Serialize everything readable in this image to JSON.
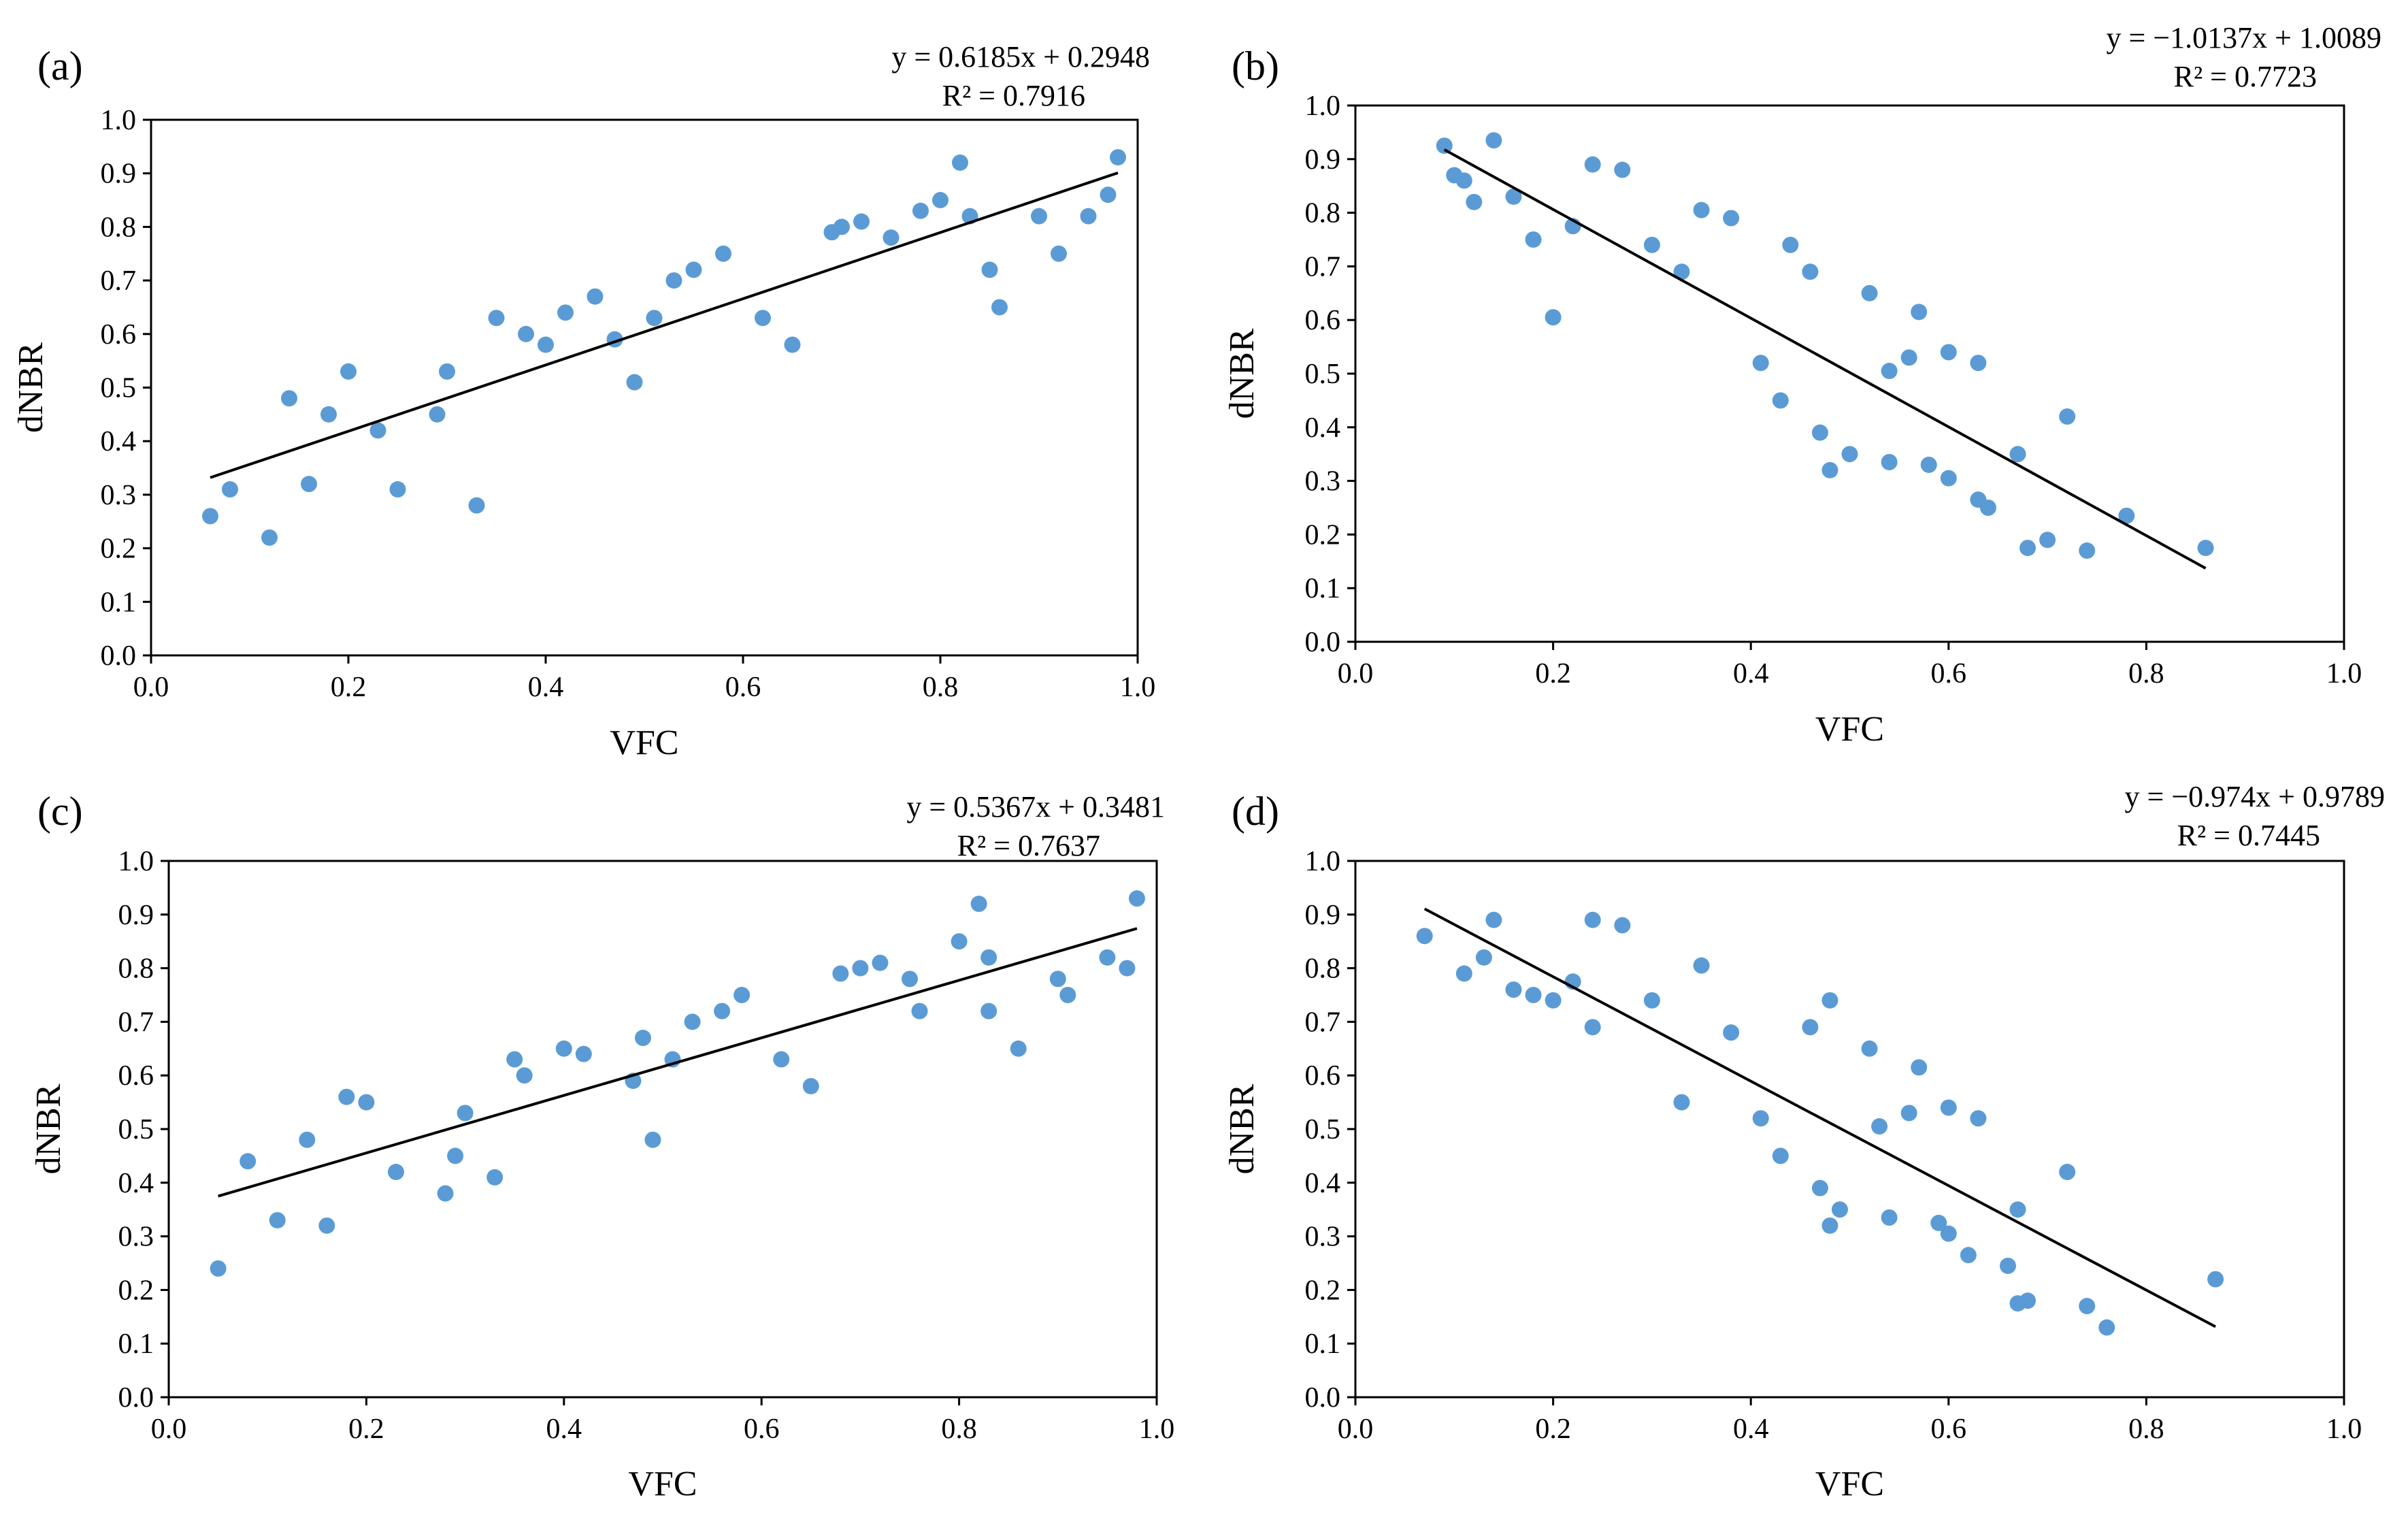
{
  "style": {
    "point_color": "#5b9bd5",
    "line_color": "#000000",
    "axis_color": "#000000",
    "background": "#ffffff"
  },
  "chart_data": [
    {
      "type": "scatter",
      "panel_label": "(a)",
      "equation": "y = 0.6185x + 0.2948",
      "r2": "R² = 0.7916",
      "xlabel": "VFC",
      "ylabel": "dNBR",
      "xlim": [
        0,
        1
      ],
      "ylim": [
        0,
        1
      ],
      "x_ticks": [
        "0.0",
        "0.2",
        "0.4",
        "0.6",
        "0.8",
        "1.0"
      ],
      "y_ticks": [
        "0.0",
        "0.1",
        "0.2",
        "0.3",
        "0.4",
        "0.5",
        "0.6",
        "0.7",
        "0.8",
        "0.9",
        "1.0"
      ],
      "grid": false,
      "trendline": {
        "slope": 0.6185,
        "intercept": 0.2948,
        "x_range": [
          0.06,
          0.98
        ]
      },
      "points": [
        [
          0.06,
          0.26
        ],
        [
          0.08,
          0.31
        ],
        [
          0.12,
          0.22
        ],
        [
          0.14,
          0.48
        ],
        [
          0.16,
          0.32
        ],
        [
          0.18,
          0.45
        ],
        [
          0.2,
          0.53
        ],
        [
          0.23,
          0.42
        ],
        [
          0.25,
          0.31
        ],
        [
          0.29,
          0.45
        ],
        [
          0.3,
          0.53
        ],
        [
          0.33,
          0.28
        ],
        [
          0.35,
          0.63
        ],
        [
          0.38,
          0.6
        ],
        [
          0.4,
          0.58
        ],
        [
          0.42,
          0.64
        ],
        [
          0.45,
          0.67
        ],
        [
          0.47,
          0.59
        ],
        [
          0.49,
          0.51
        ],
        [
          0.51,
          0.63
        ],
        [
          0.53,
          0.7
        ],
        [
          0.55,
          0.72
        ],
        [
          0.58,
          0.75
        ],
        [
          0.62,
          0.63
        ],
        [
          0.65,
          0.58
        ],
        [
          0.69,
          0.79
        ],
        [
          0.7,
          0.8
        ],
        [
          0.72,
          0.81
        ],
        [
          0.75,
          0.78
        ],
        [
          0.78,
          0.83
        ],
        [
          0.8,
          0.85
        ],
        [
          0.82,
          0.92
        ],
        [
          0.83,
          0.82
        ],
        [
          0.85,
          0.72
        ],
        [
          0.86,
          0.65
        ],
        [
          0.9,
          0.82
        ],
        [
          0.92,
          0.75
        ],
        [
          0.95,
          0.82
        ],
        [
          0.97,
          0.86
        ],
        [
          0.98,
          0.93
        ]
      ]
    },
    {
      "type": "scatter",
      "panel_label": "(b)",
      "equation": "y = −1.0137x + 1.0089",
      "r2": "R² = 0.7723",
      "xlabel": "VFC",
      "ylabel": "dNBR",
      "xlim": [
        0,
        1
      ],
      "ylim": [
        0,
        1
      ],
      "x_ticks": [
        "0.0",
        "0.2",
        "0.4",
        "0.6",
        "0.8",
        "1.0"
      ],
      "y_ticks": [
        "0.0",
        "0.1",
        "0.2",
        "0.3",
        "0.4",
        "0.5",
        "0.6",
        "0.7",
        "0.8",
        "0.9",
        "1.0"
      ],
      "grid": false,
      "trendline": {
        "slope": -1.0137,
        "intercept": 1.0089,
        "x_range": [
          0.09,
          0.86
        ]
      },
      "points": [
        [
          0.09,
          0.925
        ],
        [
          0.1,
          0.87
        ],
        [
          0.11,
          0.86
        ],
        [
          0.12,
          0.82
        ],
        [
          0.14,
          0.935
        ],
        [
          0.16,
          0.83
        ],
        [
          0.18,
          0.75
        ],
        [
          0.2,
          0.605
        ],
        [
          0.22,
          0.775
        ],
        [
          0.24,
          0.89
        ],
        [
          0.27,
          0.88
        ],
        [
          0.3,
          0.74
        ],
        [
          0.33,
          0.69
        ],
        [
          0.35,
          0.805
        ],
        [
          0.38,
          0.79
        ],
        [
          0.41,
          0.52
        ],
        [
          0.43,
          0.45
        ],
        [
          0.44,
          0.74
        ],
        [
          0.46,
          0.69
        ],
        [
          0.47,
          0.39
        ],
        [
          0.48,
          0.32
        ],
        [
          0.5,
          0.35
        ],
        [
          0.52,
          0.65
        ],
        [
          0.54,
          0.505
        ],
        [
          0.54,
          0.335
        ],
        [
          0.56,
          0.53
        ],
        [
          0.57,
          0.615
        ],
        [
          0.58,
          0.33
        ],
        [
          0.6,
          0.54
        ],
        [
          0.6,
          0.305
        ],
        [
          0.63,
          0.52
        ],
        [
          0.63,
          0.265
        ],
        [
          0.64,
          0.25
        ],
        [
          0.67,
          0.35
        ],
        [
          0.68,
          0.175
        ],
        [
          0.7,
          0.19
        ],
        [
          0.72,
          0.42
        ],
        [
          0.74,
          0.17
        ],
        [
          0.78,
          0.235
        ],
        [
          0.86,
          0.175
        ]
      ]
    },
    {
      "type": "scatter",
      "panel_label": "(c)",
      "equation": "y = 0.5367x + 0.3481",
      "r2": "R² = 0.7637",
      "xlabel": "VFC",
      "ylabel": "dNBR",
      "xlim": [
        0,
        1
      ],
      "ylim": [
        0,
        1
      ],
      "x_ticks": [
        "0.0",
        "0.2",
        "0.4",
        "0.6",
        "0.8",
        "1.0"
      ],
      "y_ticks": [
        "0.0",
        "0.1",
        "0.2",
        "0.3",
        "0.4",
        "0.5",
        "0.6",
        "0.7",
        "0.8",
        "0.9",
        "1.0"
      ],
      "grid": false,
      "trendline": {
        "slope": 0.5367,
        "intercept": 0.3481,
        "x_range": [
          0.05,
          0.98
        ]
      },
      "points": [
        [
          0.05,
          0.24
        ],
        [
          0.08,
          0.44
        ],
        [
          0.11,
          0.33
        ],
        [
          0.14,
          0.48
        ],
        [
          0.16,
          0.32
        ],
        [
          0.18,
          0.56
        ],
        [
          0.2,
          0.55
        ],
        [
          0.23,
          0.42
        ],
        [
          0.28,
          0.38
        ],
        [
          0.29,
          0.45
        ],
        [
          0.3,
          0.53
        ],
        [
          0.33,
          0.41
        ],
        [
          0.35,
          0.63
        ],
        [
          0.36,
          0.6
        ],
        [
          0.4,
          0.65
        ],
        [
          0.42,
          0.64
        ],
        [
          0.47,
          0.59
        ],
        [
          0.48,
          0.67
        ],
        [
          0.49,
          0.48
        ],
        [
          0.51,
          0.63
        ],
        [
          0.53,
          0.7
        ],
        [
          0.56,
          0.72
        ],
        [
          0.58,
          0.75
        ],
        [
          0.62,
          0.63
        ],
        [
          0.65,
          0.58
        ],
        [
          0.68,
          0.79
        ],
        [
          0.7,
          0.8
        ],
        [
          0.72,
          0.81
        ],
        [
          0.75,
          0.78
        ],
        [
          0.76,
          0.72
        ],
        [
          0.8,
          0.85
        ],
        [
          0.82,
          0.92
        ],
        [
          0.83,
          0.82
        ],
        [
          0.83,
          0.72
        ],
        [
          0.86,
          0.65
        ],
        [
          0.9,
          0.78
        ],
        [
          0.91,
          0.75
        ],
        [
          0.95,
          0.82
        ],
        [
          0.97,
          0.8
        ],
        [
          0.98,
          0.93
        ]
      ]
    },
    {
      "type": "scatter",
      "panel_label": "(d)",
      "equation": "y = −0.974x + 0.9789",
      "r2": "R² = 0.7445",
      "xlabel": "VFC",
      "ylabel": "dNBR",
      "xlim": [
        0,
        1
      ],
      "ylim": [
        0,
        1
      ],
      "x_ticks": [
        "0.0",
        "0.2",
        "0.4",
        "0.6",
        "0.8",
        "1.0"
      ],
      "y_ticks": [
        "0.0",
        "0.1",
        "0.2",
        "0.3",
        "0.4",
        "0.5",
        "0.6",
        "0.7",
        "0.8",
        "0.9",
        "1.0"
      ],
      "grid": false,
      "trendline": {
        "slope": -0.974,
        "intercept": 0.9789,
        "x_range": [
          0.07,
          0.87
        ]
      },
      "points": [
        [
          0.07,
          0.86
        ],
        [
          0.11,
          0.79
        ],
        [
          0.13,
          0.82
        ],
        [
          0.14,
          0.89
        ],
        [
          0.16,
          0.76
        ],
        [
          0.18,
          0.75
        ],
        [
          0.2,
          0.74
        ],
        [
          0.22,
          0.775
        ],
        [
          0.24,
          0.89
        ],
        [
          0.24,
          0.69
        ],
        [
          0.27,
          0.88
        ],
        [
          0.3,
          0.74
        ],
        [
          0.33,
          0.55
        ],
        [
          0.35,
          0.805
        ],
        [
          0.38,
          0.68
        ],
        [
          0.41,
          0.52
        ],
        [
          0.43,
          0.45
        ],
        [
          0.46,
          0.69
        ],
        [
          0.47,
          0.39
        ],
        [
          0.48,
          0.74
        ],
        [
          0.48,
          0.32
        ],
        [
          0.49,
          0.35
        ],
        [
          0.52,
          0.65
        ],
        [
          0.53,
          0.505
        ],
        [
          0.54,
          0.335
        ],
        [
          0.56,
          0.53
        ],
        [
          0.57,
          0.615
        ],
        [
          0.59,
          0.325
        ],
        [
          0.6,
          0.54
        ],
        [
          0.6,
          0.305
        ],
        [
          0.62,
          0.265
        ],
        [
          0.63,
          0.52
        ],
        [
          0.66,
          0.245
        ],
        [
          0.67,
          0.35
        ],
        [
          0.67,
          0.175
        ],
        [
          0.68,
          0.18
        ],
        [
          0.72,
          0.42
        ],
        [
          0.74,
          0.17
        ],
        [
          0.76,
          0.13
        ],
        [
          0.87,
          0.22
        ]
      ]
    }
  ]
}
